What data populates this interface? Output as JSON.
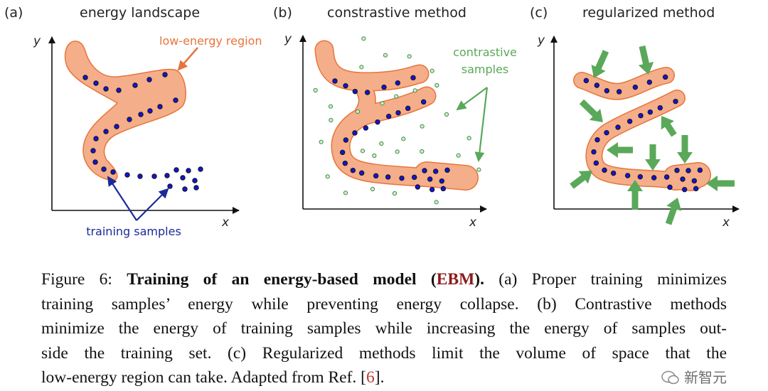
{
  "panels": [
    {
      "tag": "(a)",
      "title": "energy landscape",
      "x_label": "x",
      "y_label": "y",
      "annotations": {
        "region": "low-energy region",
        "samples": "training samples"
      }
    },
    {
      "tag": "(b)",
      "title": "constrastive method",
      "x_label": "x",
      "y_label": "y",
      "annotations": {
        "contrastive_line1": "contrastive",
        "contrastive_line2": "samples"
      }
    },
    {
      "tag": "(c)",
      "title": "regularized method",
      "x_label": "x",
      "y_label": "y"
    }
  ],
  "caption": {
    "prefix": "Figure 6: ",
    "bold_title": "Training of an energy-based model (",
    "abbr": "EBM",
    "bold_close": ").",
    "line1_rest": " (a) Proper training minimizes",
    "line2": "training samples’ energy while preventing energy collapse. (b) Contrastive methods",
    "line3": "minimize the energy of training samples while increasing the energy of samples out-",
    "line4": "side the training set. (c) Regularized methods limit the volume of space that the",
    "line5_pre": "low-energy region can take. Adapted from Ref. [",
    "ref": "6",
    "line5_post": "]."
  },
  "watermark": "新智元",
  "colors": {
    "region_fill": "#f4ae8a",
    "region_stroke": "#e8743b",
    "training": "#1414d4",
    "contrastive": "#5aa85a",
    "annotation_blue": "#1a2a9a"
  }
}
